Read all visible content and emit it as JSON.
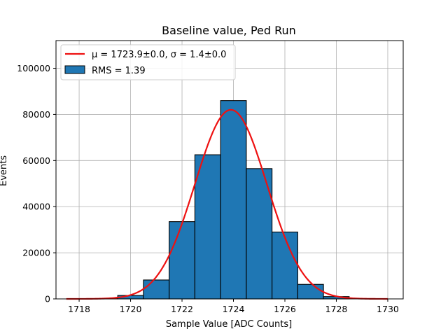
{
  "chart_data": {
    "type": "bar",
    "title": "Baseline value, Ped Run",
    "xlabel": "Sample Value [ADC Counts]",
    "ylabel": "Events",
    "xlim": [
      1717.1,
      1730.6
    ],
    "ylim": [
      0,
      112000
    ],
    "x_ticks": [
      1718,
      1720,
      1722,
      1724,
      1726,
      1728,
      1730
    ],
    "y_ticks": [
      0,
      20000,
      40000,
      60000,
      80000,
      100000
    ],
    "grid": true,
    "legend_position": "top-left",
    "histogram": {
      "name": "RMS = 1.39",
      "bin_width": 1,
      "bin_centers": [
        1718,
        1719,
        1720,
        1721,
        1722,
        1723,
        1724,
        1725,
        1726,
        1727,
        1728,
        1729,
        1730
      ],
      "values": [
        0,
        100,
        1500,
        8200,
        33500,
        62500,
        86000,
        56500,
        29000,
        6300,
        1000,
        0,
        0
      ],
      "color": "#1f77b4"
    },
    "fit": {
      "name": "μ = 1723.9±0.0, σ = 1.4±0.0",
      "mu": 1723.9,
      "sigma": 1.4,
      "amplitude": 82000,
      "x_range": [
        1717.5,
        1730
      ],
      "color": "#ee1111"
    }
  }
}
